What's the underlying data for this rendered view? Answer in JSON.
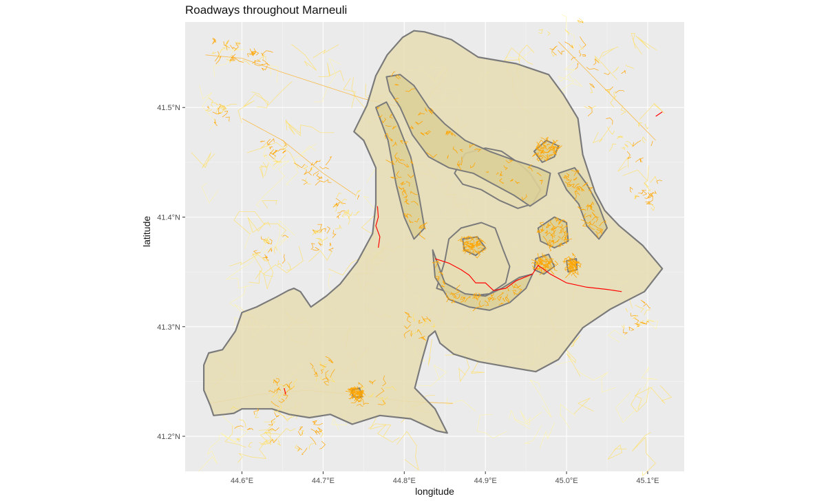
{
  "chart_data": {
    "type": "map",
    "title": "Roadways throughout Marneuli",
    "xlabel": "longitude",
    "ylabel": "latitude",
    "xlim": [
      44.53,
      45.145
    ],
    "ylim": [
      41.168,
      41.578
    ],
    "x_ticks": [
      {
        "value": 44.6,
        "label": "44.6°E"
      },
      {
        "value": 44.7,
        "label": "44.7°E"
      },
      {
        "value": 44.8,
        "label": "44.8°E"
      },
      {
        "value": 44.9,
        "label": "44.9°E"
      },
      {
        "value": 45.0,
        "label": "45.0°E"
      },
      {
        "value": 45.1,
        "label": "45.1°E"
      }
    ],
    "y_ticks": [
      {
        "value": 41.2,
        "label": "41.2°N"
      },
      {
        "value": 41.3,
        "label": "41.3°N"
      },
      {
        "value": 41.4,
        "label": "41.4°N"
      },
      {
        "value": 41.5,
        "label": "41.5°N"
      }
    ],
    "grid": true,
    "legend": "none",
    "colors": {
      "panel": "#ebebeb",
      "grid": "#ffffff",
      "boundary_fill": "#e6ddb4",
      "boundary_stroke": "#7a7a7a",
      "inner_fill": "#dccf98",
      "road_major": "#ff0000",
      "road_secondary": "#ffa500",
      "road_minor": "#ffe066",
      "road_faint": "#fff4a8"
    },
    "boundary": [
      [
        44.561,
        41.228
      ],
      [
        44.553,
        41.242
      ],
      [
        44.553,
        41.265
      ],
      [
        44.559,
        41.276
      ],
      [
        44.576,
        41.279
      ],
      [
        44.592,
        41.296
      ],
      [
        44.6,
        41.313
      ],
      [
        44.618,
        41.318
      ],
      [
        44.642,
        41.327
      ],
      [
        44.657,
        41.333
      ],
      [
        44.664,
        41.335
      ],
      [
        44.672,
        41.332
      ],
      [
        44.685,
        41.318
      ],
      [
        44.704,
        41.328
      ],
      [
        44.721,
        41.339
      ],
      [
        44.742,
        41.359
      ],
      [
        44.761,
        41.385
      ],
      [
        44.765,
        41.412
      ],
      [
        44.765,
        41.445
      ],
      [
        44.75,
        41.47
      ],
      [
        44.738,
        41.478
      ],
      [
        44.754,
        41.502
      ],
      [
        44.765,
        41.529
      ],
      [
        44.779,
        41.548
      ],
      [
        44.798,
        41.564
      ],
      [
        44.812,
        41.57
      ],
      [
        44.825,
        41.569
      ],
      [
        44.858,
        41.562
      ],
      [
        44.891,
        41.546
      ],
      [
        44.938,
        41.54
      ],
      [
        44.978,
        41.53
      ],
      [
        44.996,
        41.512
      ],
      [
        45.014,
        41.49
      ],
      [
        45.02,
        41.457
      ],
      [
        45.035,
        41.423
      ],
      [
        45.047,
        41.406
      ],
      [
        45.065,
        41.392
      ],
      [
        45.094,
        41.374
      ],
      [
        45.118,
        41.353
      ],
      [
        45.096,
        41.332
      ],
      [
        45.054,
        41.316
      ],
      [
        45.02,
        41.299
      ],
      [
        44.99,
        41.27
      ],
      [
        44.962,
        41.259
      ],
      [
        44.938,
        41.262
      ],
      [
        44.892,
        41.268
      ],
      [
        44.861,
        41.275
      ],
      [
        44.844,
        41.285
      ],
      [
        44.838,
        41.296
      ],
      [
        44.83,
        41.291
      ],
      [
        44.822,
        41.27
      ],
      [
        44.813,
        41.244
      ],
      [
        44.838,
        41.225
      ],
      [
        44.853,
        41.203
      ],
      [
        44.84,
        41.205
      ],
      [
        44.808,
        41.216
      ],
      [
        44.77,
        41.219
      ],
      [
        44.736,
        41.211
      ],
      [
        44.709,
        41.22
      ],
      [
        44.683,
        41.217
      ],
      [
        44.658,
        41.22
      ],
      [
        44.637,
        41.225
      ],
      [
        44.62,
        41.225
      ],
      [
        44.6,
        41.225
      ],
      [
        44.59,
        41.221
      ],
      [
        44.579,
        41.22
      ],
      [
        44.565,
        41.219
      ]
    ],
    "hole_shapes": [
      [
        [
          44.84,
          41.335
        ],
        [
          44.85,
          41.36
        ],
        [
          44.855,
          41.38
        ],
        [
          44.87,
          41.39
        ],
        [
          44.895,
          41.395
        ],
        [
          44.912,
          41.39
        ],
        [
          44.922,
          41.37
        ],
        [
          44.93,
          41.355
        ],
        [
          44.925,
          41.34
        ],
        [
          44.905,
          41.33
        ],
        [
          44.88,
          41.328
        ],
        [
          44.86,
          41.33
        ]
      ],
      [
        [
          44.862,
          41.44
        ],
        [
          44.875,
          41.458
        ],
        [
          44.9,
          41.463
        ],
        [
          44.92,
          41.46
        ],
        [
          44.94,
          41.45
        ],
        [
          44.955,
          41.44
        ],
        [
          44.968,
          41.425
        ],
        [
          44.958,
          41.412
        ],
        [
          44.94,
          41.408
        ],
        [
          44.918,
          41.415
        ],
        [
          44.895,
          41.425
        ],
        [
          44.872,
          41.43
        ]
      ]
    ],
    "zones": [
      [
        [
          44.782,
          41.515
        ],
        [
          44.795,
          41.5
        ],
        [
          44.81,
          41.475
        ],
        [
          44.83,
          41.455
        ],
        [
          44.855,
          41.445
        ],
        [
          44.885,
          41.44
        ],
        [
          44.91,
          41.43
        ],
        [
          44.935,
          41.42
        ],
        [
          44.955,
          41.41
        ],
        [
          44.975,
          41.42
        ],
        [
          44.98,
          41.44
        ],
        [
          44.965,
          41.445
        ],
        [
          44.935,
          41.452
        ],
        [
          44.905,
          41.46
        ],
        [
          44.875,
          41.47
        ],
        [
          44.85,
          41.485
        ],
        [
          44.83,
          41.5
        ],
        [
          44.812,
          41.52
        ],
        [
          44.795,
          41.53
        ],
        [
          44.778,
          41.528
        ]
      ],
      [
        [
          44.765,
          41.5
        ],
        [
          44.78,
          41.47
        ],
        [
          44.79,
          41.43
        ],
        [
          44.8,
          41.4
        ],
        [
          44.812,
          41.38
        ],
        [
          44.825,
          41.39
        ],
        [
          44.818,
          41.42
        ],
        [
          44.808,
          41.455
        ],
        [
          44.792,
          41.485
        ],
        [
          44.778,
          41.505
        ]
      ],
      [
        [
          44.835,
          41.37
        ],
        [
          44.85,
          41.34
        ],
        [
          44.875,
          41.33
        ],
        [
          44.9,
          41.328
        ],
        [
          44.92,
          41.335
        ],
        [
          44.942,
          41.345
        ],
        [
          44.958,
          41.348
        ],
        [
          44.95,
          41.335
        ],
        [
          44.93,
          41.322
        ],
        [
          44.905,
          41.315
        ],
        [
          44.88,
          41.318
        ],
        [
          44.855,
          41.325
        ],
        [
          44.838,
          41.345
        ]
      ],
      [
        [
          44.96,
          41.46
        ],
        [
          44.975,
          41.47
        ],
        [
          44.99,
          41.465
        ],
        [
          44.985,
          41.455
        ],
        [
          44.97,
          41.45
        ]
      ],
      [
        [
          44.99,
          41.44
        ],
        [
          45.01,
          41.445
        ],
        [
          45.025,
          41.43
        ],
        [
          45.04,
          41.41
        ],
        [
          45.05,
          41.39
        ],
        [
          45.04,
          41.38
        ],
        [
          45.025,
          41.392
        ],
        [
          45.015,
          41.412
        ],
        [
          45.0,
          41.425
        ]
      ],
      [
        [
          44.965,
          41.39
        ],
        [
          44.985,
          41.4
        ],
        [
          45.0,
          41.395
        ],
        [
          45.002,
          41.378
        ],
        [
          44.985,
          41.372
        ],
        [
          44.968,
          41.378
        ]
      ],
      [
        [
          44.962,
          41.362
        ],
        [
          44.978,
          41.366
        ],
        [
          44.985,
          41.355
        ],
        [
          44.972,
          41.348
        ],
        [
          44.96,
          41.352
        ]
      ],
      [
        [
          45.0,
          41.36
        ],
        [
          45.012,
          41.362
        ],
        [
          45.013,
          41.352
        ],
        [
          45.002,
          41.35
        ]
      ],
      [
        [
          44.872,
          41.38
        ],
        [
          44.89,
          41.382
        ],
        [
          44.9,
          41.372
        ],
        [
          44.888,
          41.365
        ],
        [
          44.874,
          41.37
        ]
      ],
      [
        [
          44.735,
          41.242
        ],
        [
          44.745,
          41.244
        ],
        [
          44.748,
          41.236
        ],
        [
          44.737,
          41.236
        ]
      ]
    ],
    "major_roads": [
      [
        [
          44.767,
          41.41
        ],
        [
          44.768,
          41.4
        ],
        [
          44.765,
          41.392
        ],
        [
          44.77,
          41.382
        ],
        [
          44.768,
          41.372
        ]
      ],
      [
        [
          44.838,
          41.362
        ],
        [
          44.855,
          41.358
        ],
        [
          44.87,
          41.352
        ],
        [
          44.88,
          41.347
        ],
        [
          44.888,
          41.34
        ],
        [
          44.9,
          41.34
        ],
        [
          44.91,
          41.333
        ],
        [
          44.925,
          41.335
        ],
        [
          44.938,
          41.342
        ],
        [
          44.958,
          41.348
        ],
        [
          44.965,
          41.356
        ],
        [
          44.98,
          41.348
        ],
        [
          45.0,
          41.34
        ],
        [
          45.025,
          41.336
        ],
        [
          45.05,
          41.334
        ],
        [
          45.068,
          41.332
        ]
      ],
      [
        [
          44.652,
          41.244
        ],
        [
          44.654,
          41.238
        ]
      ],
      [
        [
          45.11,
          41.492
        ],
        [
          45.118,
          41.496
        ]
      ]
    ]
  }
}
